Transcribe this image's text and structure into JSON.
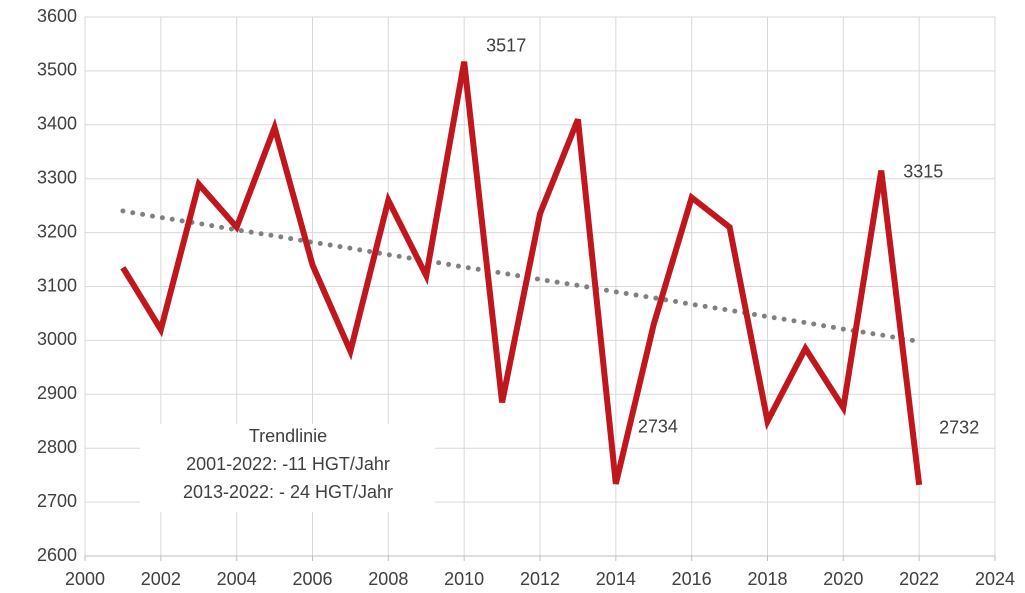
{
  "chart_data": {
    "type": "line",
    "x": [
      2001,
      2002,
      2003,
      2004,
      2005,
      2006,
      2007,
      2008,
      2009,
      2010,
      2011,
      2012,
      2013,
      2014,
      2015,
      2016,
      2017,
      2018,
      2019,
      2020,
      2021,
      2022
    ],
    "series": [
      {
        "color": "#c0161e",
        "style": "solid",
        "values": [
          3135,
          3020,
          3290,
          3210,
          3395,
          3140,
          2980,
          3260,
          3120,
          3517,
          2885,
          3235,
          3410,
          2734,
          3030,
          3265,
          3210,
          2850,
          2985,
          2875,
          3315,
          2732
        ],
        "value_labels": [
          null,
          null,
          null,
          null,
          null,
          null,
          null,
          null,
          null,
          "3517",
          null,
          null,
          null,
          "2734",
          null,
          null,
          null,
          null,
          null,
          null,
          "3315",
          "2732"
        ]
      },
      {
        "color": "#808080",
        "style": "dotted",
        "values": [
          3240,
          3228,
          3217,
          3205,
          3194,
          3182,
          3171,
          3159,
          3148,
          3136,
          3125,
          3113,
          3102,
          3090,
          3079,
          3067,
          3056,
          3044,
          3033,
          3021,
          3010,
          2998
        ]
      }
    ],
    "annotation": [
      "Trendlinie",
      "2001-2022: -11 HGT/Jahr",
      "2013-2022: - 24 HGT/Jahr"
    ],
    "xlim": [
      2000,
      2024
    ],
    "xticks": [
      2000,
      2002,
      2004,
      2006,
      2008,
      2010,
      2012,
      2014,
      2016,
      2018,
      2020,
      2022,
      2024
    ],
    "ylim": [
      2600,
      3600
    ],
    "yticks": [
      2600,
      2700,
      2800,
      2900,
      3000,
      3100,
      3200,
      3300,
      3400,
      3500,
      3600
    ],
    "grid": true
  }
}
